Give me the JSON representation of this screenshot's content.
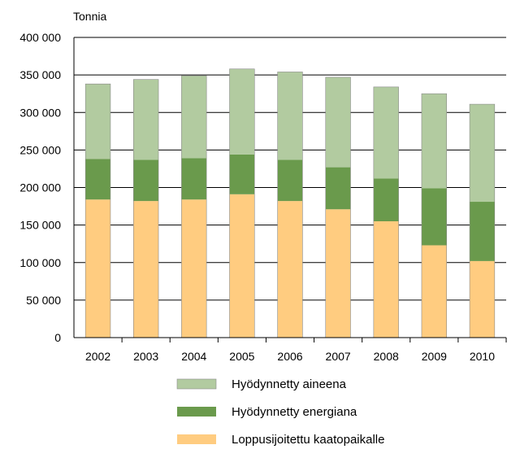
{
  "chart_data": {
    "type": "bar",
    "stacked": true,
    "y_unit_label": "Tonnia",
    "categories": [
      "2002",
      "2003",
      "2004",
      "2005",
      "2006",
      "2007",
      "2008",
      "2009",
      "2010"
    ],
    "series": [
      {
        "name": "Loppusijoitettu kaatopaikalle",
        "color": "#FFCC80",
        "values": [
          184000,
          182000,
          184000,
          191000,
          182000,
          171000,
          155000,
          123000,
          102000
        ]
      },
      {
        "name": "Hyödynnetty energiana",
        "color": "#6A9A4C",
        "values": [
          54000,
          55000,
          55000,
          53000,
          55000,
          56000,
          57000,
          76000,
          79000
        ]
      },
      {
        "name": "Hyödynnetty aineena",
        "color": "#B2CBA0",
        "values": [
          100000,
          107000,
          110000,
          114000,
          117000,
          120000,
          122000,
          126000,
          130000
        ]
      }
    ],
    "legend_order": [
      "Hyödynnetty aineena",
      "Hyödynnetty energiana",
      "Loppusijoitettu kaatopaikalle"
    ],
    "y_ticks": [
      "0",
      "50 000",
      "100 000",
      "150 000",
      "200 000",
      "250 000",
      "300 000",
      "350 000",
      "400 000"
    ],
    "ylim": [
      0,
      400000
    ],
    "grid": true,
    "legend_position": "bottom-center"
  }
}
